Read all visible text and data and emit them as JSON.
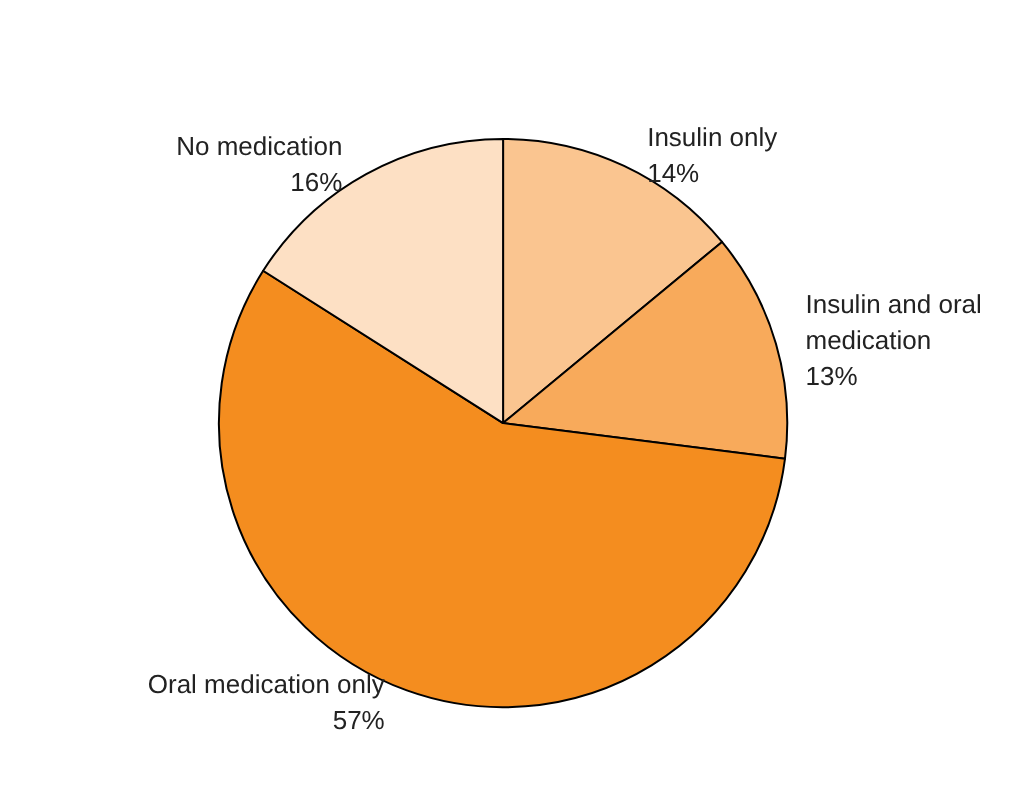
{
  "chart_data": {
    "type": "pie",
    "categories": [
      "Insulin only",
      "Insulin and oral medication",
      "Oral medication only",
      "No medication"
    ],
    "values": [
      14,
      13,
      57,
      16
    ],
    "value_labels": [
      "14%",
      "13%",
      "57%",
      "16%"
    ],
    "colors": [
      "#fac590",
      "#f8aa5b",
      "#f48d1f",
      "#fde0c4"
    ]
  }
}
